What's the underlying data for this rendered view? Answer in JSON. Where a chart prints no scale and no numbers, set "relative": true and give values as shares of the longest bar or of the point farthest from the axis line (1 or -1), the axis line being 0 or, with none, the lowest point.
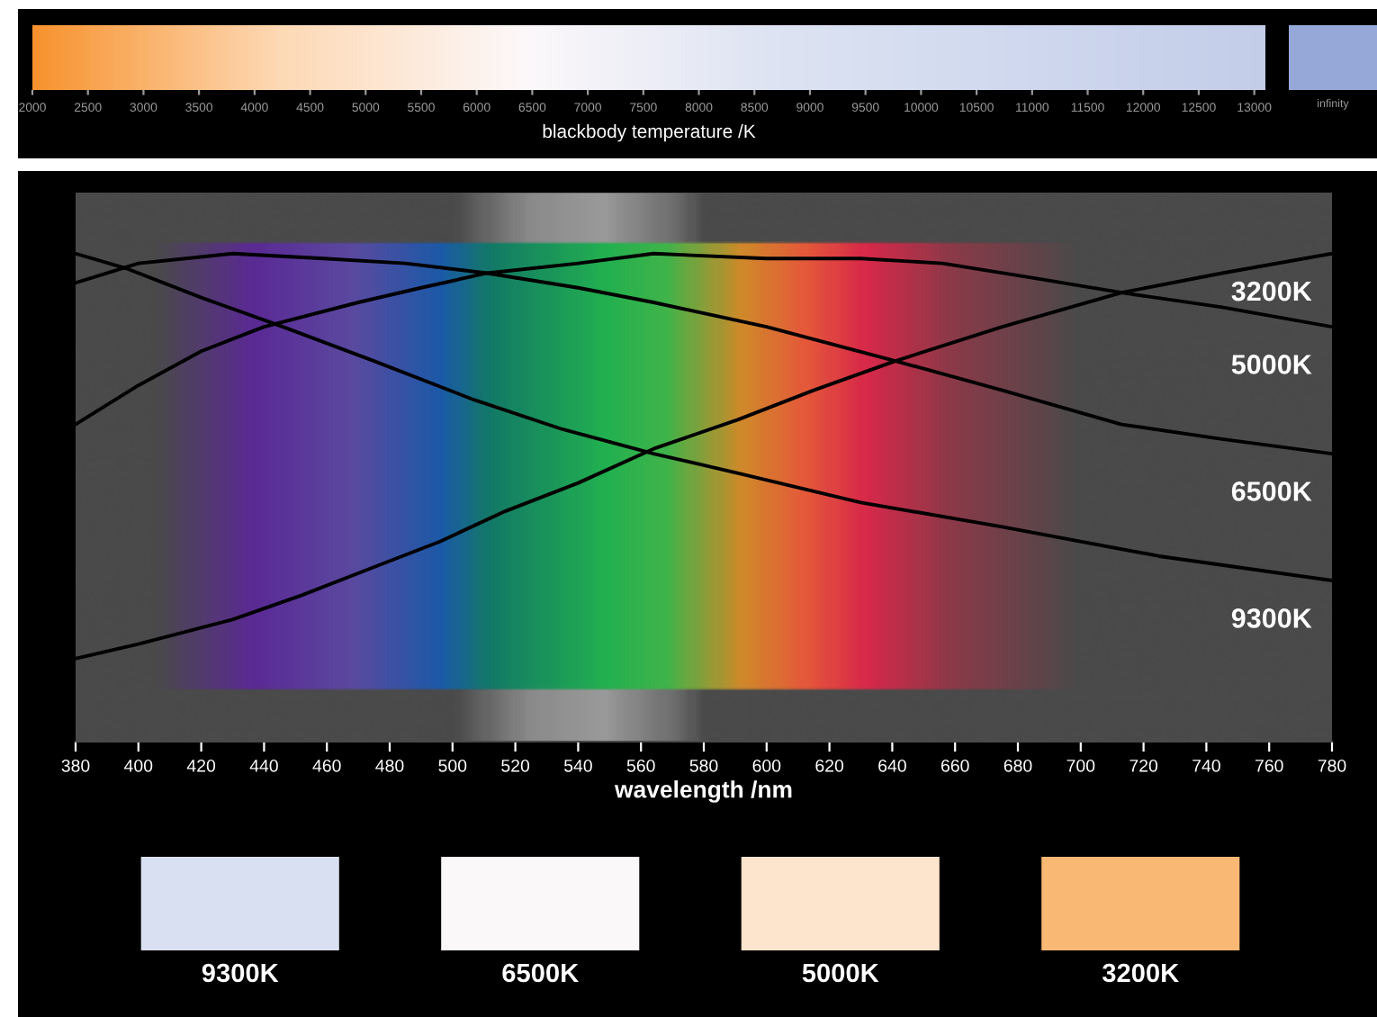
{
  "chart_data": [
    {
      "type": "line",
      "relative": true,
      "xlabel": "wavelength /nm",
      "xlim": [
        380,
        780
      ],
      "xticks": [
        380,
        400,
        420,
        440,
        460,
        480,
        500,
        520,
        540,
        560,
        580,
        600,
        620,
        640,
        660,
        680,
        700,
        720,
        740,
        760,
        780
      ],
      "marker": "none",
      "line_style": "solid",
      "series": [
        {
          "name": "3200K",
          "color": "#000000",
          "x": [
            380,
            400,
            430,
            452,
            476,
            496,
            516,
            540,
            564,
            591,
            615,
            641,
            675,
            713,
            745,
            780
          ],
          "values": [
            0.17,
            0.2,
            0.25,
            0.3,
            0.36,
            0.41,
            0.47,
            0.53,
            0.6,
            0.66,
            0.72,
            0.78,
            0.85,
            0.92,
            0.96,
            1.0
          ]
        },
        {
          "name": "5000K",
          "color": "#000000",
          "x": [
            380,
            400,
            420,
            440,
            470,
            490,
            511,
            540,
            564,
            600,
            630,
            656,
            685,
            713,
            745,
            780
          ],
          "values": [
            0.65,
            0.73,
            0.8,
            0.85,
            0.9,
            0.93,
            0.96,
            0.98,
            1.0,
            0.99,
            0.99,
            0.98,
            0.95,
            0.92,
            0.89,
            0.85
          ]
        },
        {
          "name": "6500K",
          "color": "#000000",
          "x": [
            380,
            400,
            415,
            430,
            459,
            485,
            511,
            540,
            564,
            600,
            641,
            675,
            713,
            745,
            780
          ],
          "values": [
            0.94,
            0.98,
            0.99,
            1.0,
            0.99,
            0.98,
            0.96,
            0.93,
            0.9,
            0.85,
            0.78,
            0.72,
            0.65,
            0.62,
            0.59
          ]
        },
        {
          "name": "9300K",
          "color": "#000000",
          "x": [
            380,
            396,
            420,
            446,
            475,
            507,
            535,
            564,
            591,
            630,
            675,
            725,
            780
          ],
          "values": [
            1.0,
            0.97,
            0.91,
            0.85,
            0.78,
            0.7,
            0.64,
            0.59,
            0.55,
            0.49,
            0.44,
            0.38,
            0.33
          ]
        }
      ]
    },
    {
      "type": "heatmap",
      "categories": [
        "9300K",
        "6500K",
        "5000K",
        "3200K"
      ],
      "y_categories": [
        null
      ],
      "cells": [
        [
          9300,
          6500,
          5000,
          3200
        ]
      ],
      "clabel": "blackbody temperature /K",
      "clim": [
        2000,
        13100
      ],
      "cticks": [
        2000,
        2500,
        3000,
        3500,
        4000,
        4500,
        5000,
        5500,
        6000,
        6500,
        7000,
        7500,
        8000,
        8500,
        9000,
        9500,
        10000,
        10500,
        11000,
        11500,
        12000,
        12500,
        13000
      ],
      "colors": [
        "#f7922e",
        "#fdd9b5",
        "#fcf8fa",
        "#dde3f2",
        "#cfd8ee",
        "#c3cde8",
        "#95a8d8"
      ],
      "annotations": [
        "infinity"
      ]
    }
  ]
}
